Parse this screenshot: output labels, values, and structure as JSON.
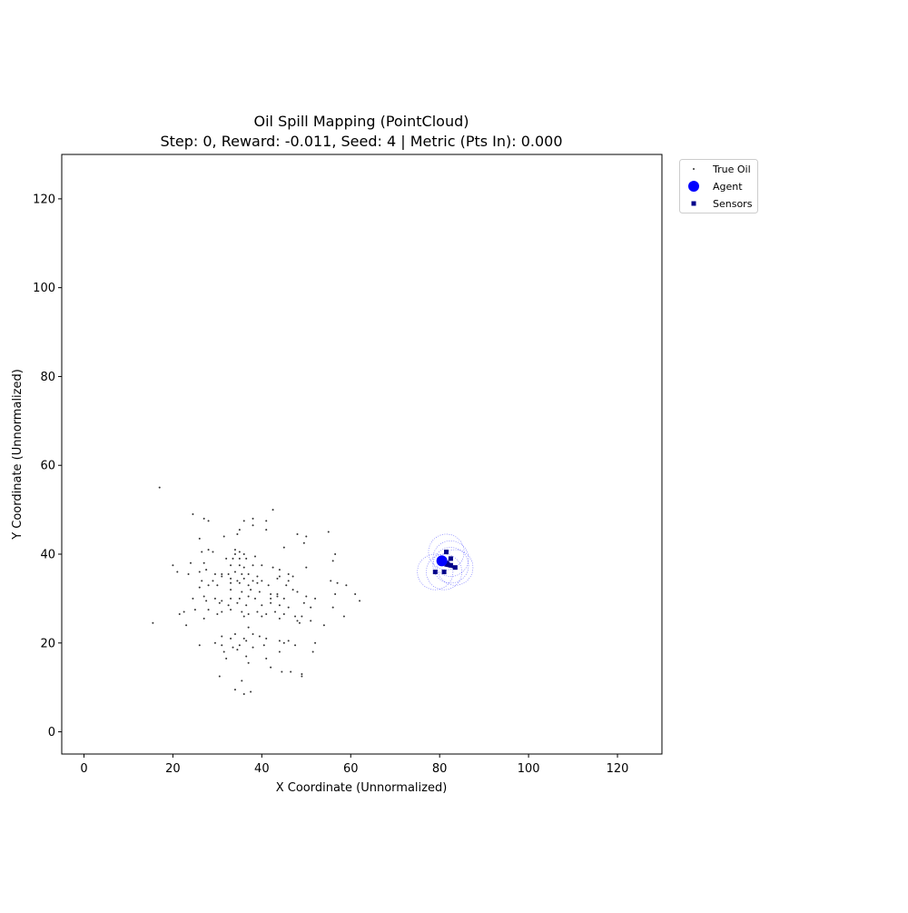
{
  "chart_data": {
    "type": "scatter",
    "title": "Oil Spill Mapping (PointCloud)",
    "subtitle": "Step: 0, Reward: -0.011, Seed: 4 | Metric (Pts In): 0.000",
    "xlabel": "X Coordinate (Unnormalized)",
    "ylabel": "Y Coordinate (Unnormalized)",
    "xlim": [
      -5,
      130
    ],
    "ylim": [
      -5,
      130
    ],
    "xticks": [
      0,
      20,
      40,
      60,
      80,
      100,
      120
    ],
    "yticks": [
      0,
      20,
      40,
      60,
      80,
      100,
      120
    ],
    "grid": false,
    "legend_position": "outside-top-right",
    "legend": [
      {
        "label": "True Oil",
        "marker": "dot",
        "color": "#333333"
      },
      {
        "label": "Agent",
        "marker": "circle",
        "color": "#0000ff"
      },
      {
        "label": "Sensors",
        "marker": "square",
        "color": "#00008b"
      }
    ],
    "series": [
      {
        "name": "True Oil",
        "color": "#333333",
        "points": [
          [
            17,
            55
          ],
          [
            24.5,
            49
          ],
          [
            27,
            48
          ],
          [
            28,
            47.5
          ],
          [
            42.5,
            50
          ],
          [
            36,
            47.5
          ],
          [
            38,
            48
          ],
          [
            41,
            47.5
          ],
          [
            38,
            46.5
          ],
          [
            35,
            45.5
          ],
          [
            41,
            45.5
          ],
          [
            34.5,
            44.5
          ],
          [
            26,
            43.5
          ],
          [
            31.5,
            44
          ],
          [
            48,
            44.5
          ],
          [
            50,
            44
          ],
          [
            55,
            45
          ],
          [
            49.5,
            42.5
          ],
          [
            45,
            41.5
          ],
          [
            28,
            41
          ],
          [
            29,
            40.5
          ],
          [
            34,
            41
          ],
          [
            35,
            40.5
          ],
          [
            34,
            40
          ],
          [
            36,
            40
          ],
          [
            33.5,
            39
          ],
          [
            35,
            39
          ],
          [
            36.5,
            39
          ],
          [
            38.5,
            39.5
          ],
          [
            32,
            39
          ],
          [
            26.5,
            40.5
          ],
          [
            24,
            38
          ],
          [
            20,
            37.5
          ],
          [
            27,
            38
          ],
          [
            33,
            37.5
          ],
          [
            35,
            37.5
          ],
          [
            36,
            37
          ],
          [
            38,
            37.5
          ],
          [
            40,
            37.5
          ],
          [
            42.5,
            37
          ],
          [
            44,
            36.5
          ],
          [
            56.5,
            40
          ],
          [
            56,
            38.5
          ],
          [
            50,
            37
          ],
          [
            21,
            36
          ],
          [
            23.5,
            35.5
          ],
          [
            26,
            36
          ],
          [
            27.5,
            36.5
          ],
          [
            29.5,
            35.5
          ],
          [
            31,
            35.5
          ],
          [
            32.5,
            35.5
          ],
          [
            34,
            36
          ],
          [
            35.5,
            35.5
          ],
          [
            37,
            35.5
          ],
          [
            39,
            35
          ],
          [
            44,
            35
          ],
          [
            46,
            35.5
          ],
          [
            47,
            35
          ],
          [
            31,
            35
          ],
          [
            33,
            34.5
          ],
          [
            34.5,
            34
          ],
          [
            36,
            34.5
          ],
          [
            38,
            34
          ],
          [
            40,
            34
          ],
          [
            43.5,
            34.5
          ],
          [
            46,
            34
          ],
          [
            26.5,
            34
          ],
          [
            29,
            34
          ],
          [
            33,
            33.5
          ],
          [
            35,
            33.5
          ],
          [
            37,
            33
          ],
          [
            39,
            33.5
          ],
          [
            41.5,
            33
          ],
          [
            45.5,
            33
          ],
          [
            28,
            33
          ],
          [
            30,
            33
          ],
          [
            26,
            32.5
          ],
          [
            33,
            32
          ],
          [
            35.5,
            31.5
          ],
          [
            37.5,
            32
          ],
          [
            39.5,
            31.5
          ],
          [
            42,
            31
          ],
          [
            43.5,
            31
          ],
          [
            47,
            32
          ],
          [
            48,
            31.5
          ],
          [
            55.5,
            34
          ],
          [
            57,
            33.5
          ],
          [
            59,
            33
          ],
          [
            56.5,
            31
          ],
          [
            61,
            31
          ],
          [
            62,
            29.5
          ],
          [
            27,
            30.5
          ],
          [
            29.5,
            30
          ],
          [
            31,
            29.5
          ],
          [
            33,
            30
          ],
          [
            35,
            30
          ],
          [
            37,
            30.5
          ],
          [
            38.5,
            30
          ],
          [
            42,
            30
          ],
          [
            43.5,
            30.5
          ],
          [
            45,
            30
          ],
          [
            50,
            30.5
          ],
          [
            52,
            30
          ],
          [
            24.5,
            30
          ],
          [
            27.5,
            29.5
          ],
          [
            30.5,
            29
          ],
          [
            32.5,
            28.5
          ],
          [
            34.5,
            29
          ],
          [
            36.5,
            28.5
          ],
          [
            40,
            28.5
          ],
          [
            42,
            29
          ],
          [
            44,
            28.5
          ],
          [
            46,
            28
          ],
          [
            49.5,
            29
          ],
          [
            51,
            28
          ],
          [
            56,
            28
          ],
          [
            22.5,
            27
          ],
          [
            25,
            27.5
          ],
          [
            28,
            27.5
          ],
          [
            31,
            27
          ],
          [
            33,
            27.5
          ],
          [
            35.5,
            27
          ],
          [
            37,
            26.5
          ],
          [
            39,
            27
          ],
          [
            41,
            26.5
          ],
          [
            43,
            27
          ],
          [
            45,
            26.5
          ],
          [
            47.5,
            26
          ],
          [
            49,
            26
          ],
          [
            21.5,
            26.5
          ],
          [
            30,
            26.5
          ],
          [
            36,
            26
          ],
          [
            40,
            26
          ],
          [
            44,
            25.5
          ],
          [
            48,
            25
          ],
          [
            51,
            25
          ],
          [
            27,
            25.5
          ],
          [
            15.5,
            24.5
          ],
          [
            23,
            24
          ],
          [
            37,
            23.5
          ],
          [
            48.5,
            24.5
          ],
          [
            54,
            24
          ],
          [
            58.5,
            26
          ],
          [
            34,
            22
          ],
          [
            38,
            22
          ],
          [
            31,
            21.5
          ],
          [
            33,
            21
          ],
          [
            36,
            21
          ],
          [
            39.5,
            21.5
          ],
          [
            41,
            21
          ],
          [
            29.5,
            20
          ],
          [
            36.5,
            20.5
          ],
          [
            44,
            20.5
          ],
          [
            45,
            20
          ],
          [
            46,
            20.5
          ],
          [
            52,
            20
          ],
          [
            26,
            19.5
          ],
          [
            31,
            19.5
          ],
          [
            33.5,
            19
          ],
          [
            35,
            19.5
          ],
          [
            38,
            19
          ],
          [
            40.5,
            19.5
          ],
          [
            47.5,
            19.5
          ],
          [
            31.5,
            18
          ],
          [
            34.5,
            18.5
          ],
          [
            44,
            18
          ],
          [
            51.5,
            18
          ],
          [
            32,
            16.5
          ],
          [
            36.5,
            17
          ],
          [
            41,
            16.5
          ],
          [
            37,
            15.5
          ],
          [
            42,
            14.5
          ],
          [
            44.5,
            13.5
          ],
          [
            46.5,
            13.5
          ],
          [
            49,
            13
          ],
          [
            49,
            12.5
          ],
          [
            30.5,
            12.5
          ],
          [
            35.5,
            11.5
          ],
          [
            34,
            9.5
          ],
          [
            36,
            8.5
          ],
          [
            37.5,
            9
          ]
        ]
      },
      {
        "name": "Agent",
        "color": "#0000ff",
        "points": [
          [
            80.5,
            38.5
          ]
        ],
        "heading": [
          2.5,
          -1.5
        ]
      },
      {
        "name": "Sensors",
        "color": "#00008b",
        "points": [
          [
            81.5,
            40.5
          ],
          [
            82.5,
            39
          ],
          [
            79,
            36
          ],
          [
            81,
            36
          ],
          [
            82.5,
            37.5
          ],
          [
            83.5,
            37
          ]
        ],
        "range_radius": 4
      }
    ]
  }
}
